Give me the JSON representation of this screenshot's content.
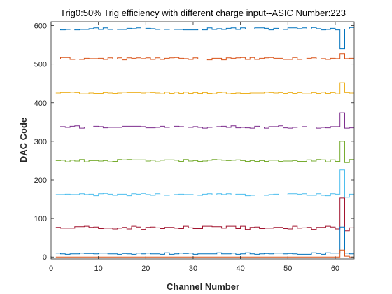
{
  "chart_data": {
    "type": "line",
    "step": true,
    "title": "Trig0:50% Trig efficiency with different charge input--ASIC Number:223",
    "xlabel": "Channel Number",
    "ylabel": "DAC Code",
    "xlim": [
      0,
      64
    ],
    "ylim": [
      -5,
      610
    ],
    "xticks": [
      0,
      10,
      20,
      30,
      40,
      50,
      60
    ],
    "yticks": [
      0,
      100,
      200,
      300,
      400,
      500,
      600
    ],
    "grid": false,
    "legend": "none",
    "series": [
      {
        "color": "#0072BD",
        "base": 592,
        "amp": 3,
        "spikes": [
          [
            61,
            540
          ],
          [
            62,
            591
          ]
        ]
      },
      {
        "color": "#D95319",
        "base": 514,
        "amp": 3,
        "spikes": [
          [
            61,
            527
          ],
          [
            62,
            514
          ]
        ]
      },
      {
        "color": "#EDB120",
        "base": 425,
        "amp": 2,
        "spikes": [
          [
            61,
            452
          ],
          [
            62,
            426
          ]
        ]
      },
      {
        "color": "#7E2F8E",
        "base": 337,
        "amp": 3,
        "spikes": [
          [
            61,
            374
          ],
          [
            62,
            334
          ]
        ]
      },
      {
        "color": "#77AC30",
        "base": 250,
        "amp": 3,
        "spikes": [
          [
            61,
            300
          ],
          [
            62,
            245
          ]
        ]
      },
      {
        "color": "#4DBEEE",
        "base": 162,
        "amp": 3,
        "spikes": [
          [
            61,
            226
          ],
          [
            62,
            155
          ]
        ]
      },
      {
        "color": "#A2142F",
        "base": 76,
        "amp": 4,
        "spikes": [
          [
            61,
            153
          ],
          [
            62,
            68
          ]
        ]
      },
      {
        "color": "#0072BD",
        "base": 9,
        "amp": 2,
        "spikes": [
          [
            61,
            78
          ],
          [
            62,
            10
          ]
        ]
      },
      {
        "color": "#D95319",
        "base": 0,
        "amp": 0,
        "spikes": [
          [
            61,
            18
          ],
          [
            62,
            2
          ]
        ]
      }
    ]
  }
}
